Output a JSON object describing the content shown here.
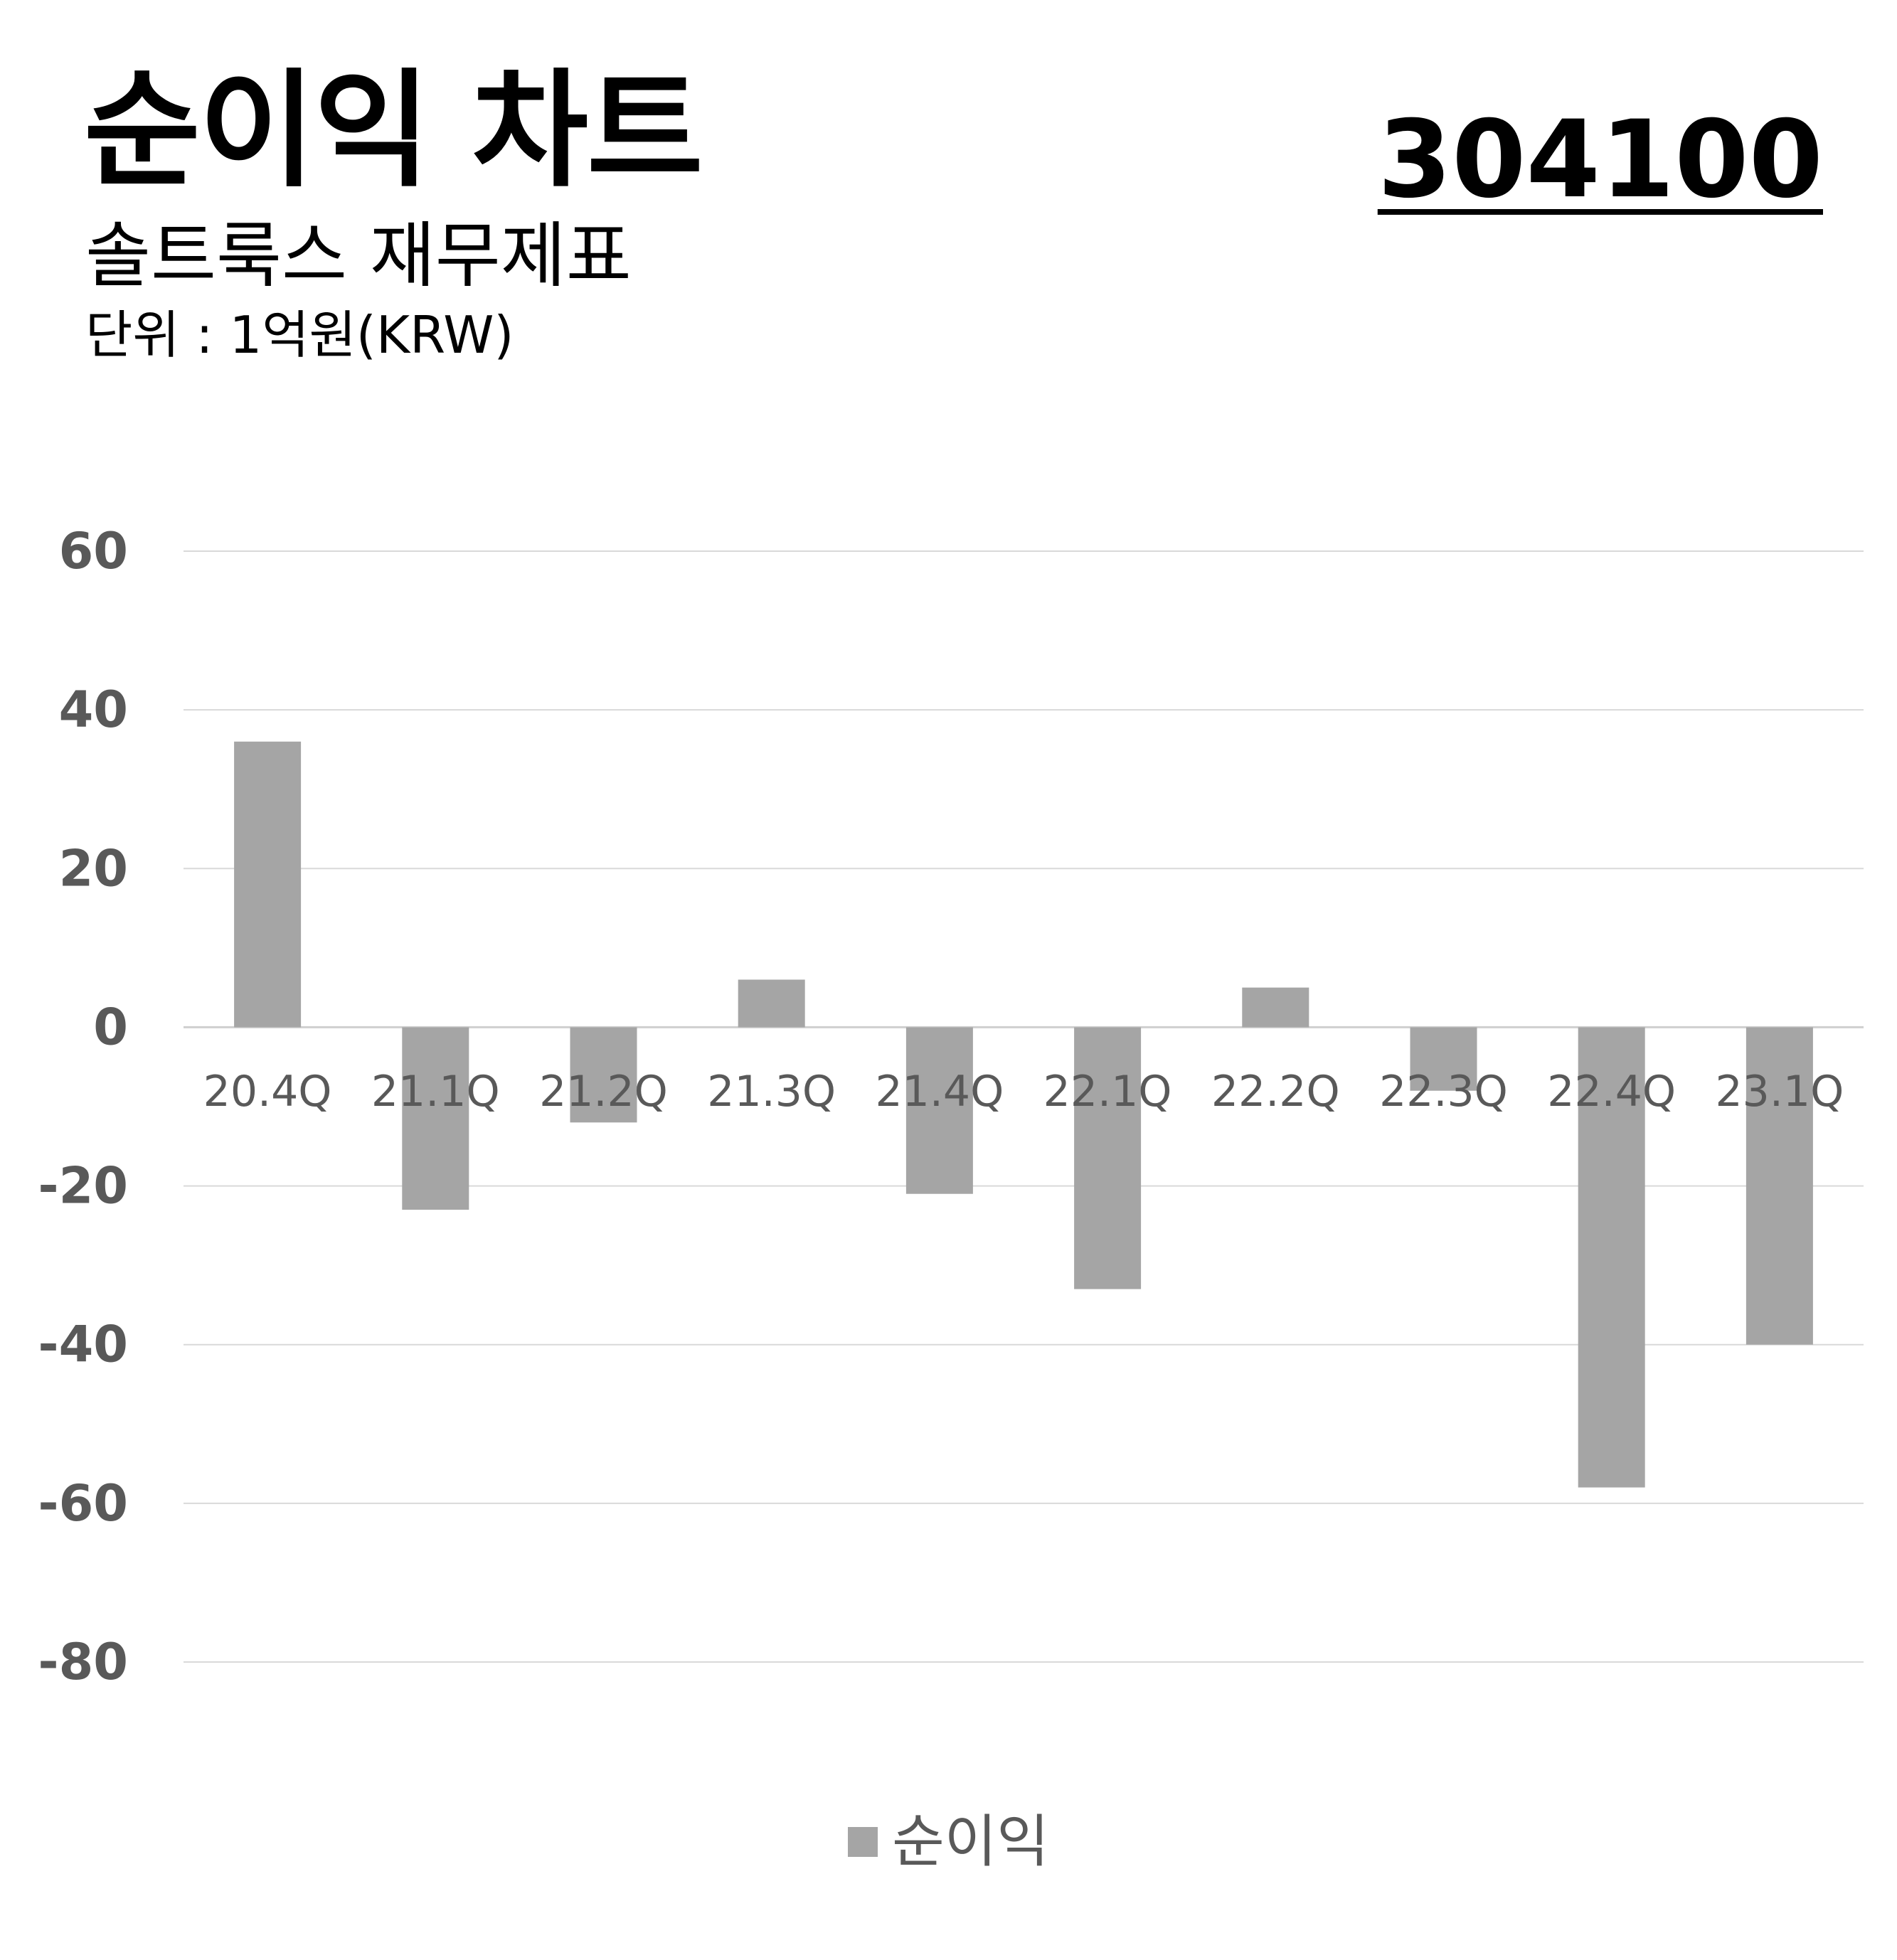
{
  "header": {
    "title": "순이익 차트",
    "subtitle": "솔트룩스 재무제표",
    "unit": "단위 : 1억원(KRW)",
    "code": "304100"
  },
  "colors": {
    "bar": "#a5a5a5",
    "grid": "#d9d9d9",
    "tick_text": "#595959"
  },
  "chart_data": {
    "type": "bar",
    "categories": [
      "20.4Q",
      "21.1Q",
      "21.2Q",
      "21.3Q",
      "21.4Q",
      "22.1Q",
      "22.2Q",
      "22.3Q",
      "22.4Q",
      "23.1Q"
    ],
    "series": [
      {
        "name": "순이익",
        "values": [
          36,
          -23,
          -12,
          6,
          -21,
          -33,
          5,
          -8,
          -58,
          -40
        ]
      }
    ],
    "yticks": [
      "60",
      "40",
      "20",
      "0",
      "-20",
      "-40",
      "-60",
      "-80"
    ],
    "ylim": [
      -80,
      60
    ],
    "grid": true,
    "legend": "bottom-center"
  }
}
